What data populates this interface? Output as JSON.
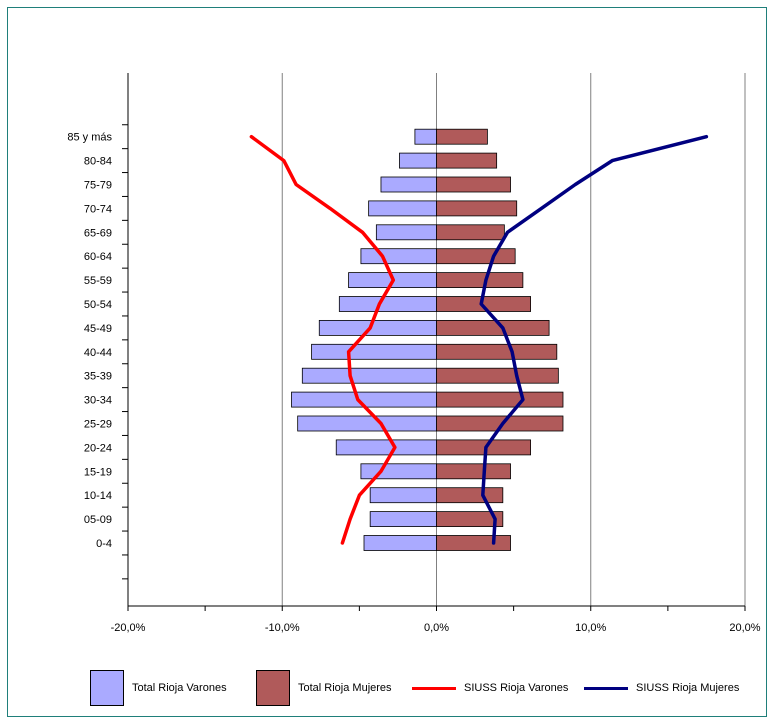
{
  "chart_data": {
    "type": "bar",
    "orientation": "horizontal",
    "categories": [
      "0-4",
      "05-09",
      "10-14",
      "15-19",
      "20-24",
      "25-29",
      "30-34",
      "35-39",
      "40-44",
      "45-49",
      "50-54",
      "55-59",
      "60-64",
      "65-69",
      "70-74",
      "75-79",
      "80-84",
      "85 y más"
    ],
    "series": [
      {
        "name": "Total Rioja Varones",
        "kind": "bar",
        "color": "#aaaaff",
        "values": [
          -4.7,
          -4.3,
          -4.3,
          -4.9,
          -6.5,
          -9.0,
          -9.4,
          -8.7,
          -8.1,
          -7.6,
          -6.3,
          -5.7,
          -4.9,
          -3.9,
          -4.4,
          -3.6,
          -2.4,
          -1.4
        ]
      },
      {
        "name": "Total Rioja Mujeres",
        "kind": "bar",
        "color": "#b05a5a",
        "values": [
          4.8,
          4.3,
          4.3,
          4.8,
          6.1,
          8.2,
          8.2,
          7.9,
          7.8,
          7.3,
          6.1,
          5.6,
          5.1,
          4.4,
          5.2,
          4.8,
          3.9,
          3.3
        ]
      },
      {
        "name": "SIUSS Rioja Varones",
        "kind": "line",
        "color": "#ff0000",
        "values": [
          -6.1,
          -5.6,
          -5.0,
          -3.6,
          -2.7,
          -3.6,
          -5.1,
          -5.6,
          -5.7,
          -4.3,
          -3.7,
          -2.8,
          -3.5,
          -4.8,
          -6.9,
          -9.1,
          -9.9,
          -12.0
        ]
      },
      {
        "name": "SIUSS Rioja Mujeres",
        "kind": "line",
        "color": "#000080",
        "values": [
          3.7,
          3.8,
          3.0,
          3.1,
          3.2,
          4.3,
          5.6,
          5.2,
          4.9,
          4.3,
          2.9,
          3.2,
          3.7,
          4.6,
          6.8,
          9.0,
          11.4,
          17.5
        ]
      }
    ],
    "xticks": [
      "-20,0%",
      "-10,0%",
      "0,0%",
      "10,0%",
      "20,0%"
    ],
    "xlim": [
      -20,
      20
    ],
    "grid": "vertical",
    "legend": "bottom"
  }
}
